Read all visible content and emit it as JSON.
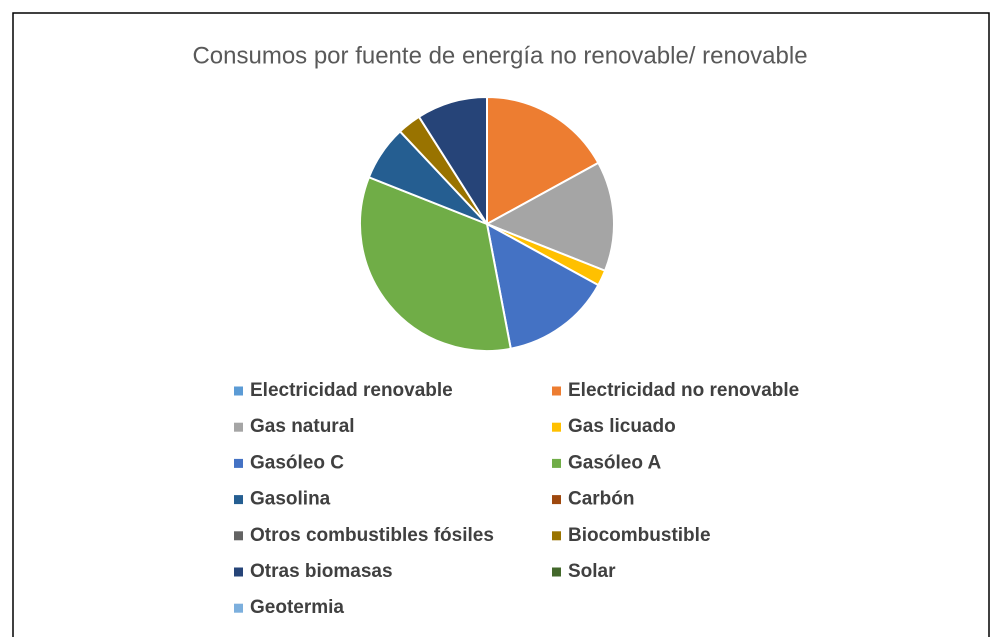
{
  "chart_data": {
    "type": "pie",
    "title": "Consumos por fuente de energía no renovable/ renovable",
    "categories": [
      "Electricidad renovable",
      "Electricidad no renovable",
      "Gas natural",
      "Gas licuado",
      "Gasóleo C",
      "Gasóleo A",
      "Gasolina",
      "Carbón",
      "Otros combustibles fósiles",
      "Biocombustible",
      "Otras biomasas",
      "Solar",
      "Geotermia"
    ],
    "values": [
      0,
      17,
      14,
      2,
      14,
      34,
      7,
      0,
      0,
      3,
      9,
      0,
      0
    ],
    "colors": [
      "#5b9bd5",
      "#ed7d31",
      "#a5a5a5",
      "#ffc000",
      "#4472c4",
      "#70ad47",
      "#255e91",
      "#9e480e",
      "#636363",
      "#997300",
      "#264478",
      "#43682b",
      "#7cafdd"
    ],
    "legend": "bottom"
  }
}
